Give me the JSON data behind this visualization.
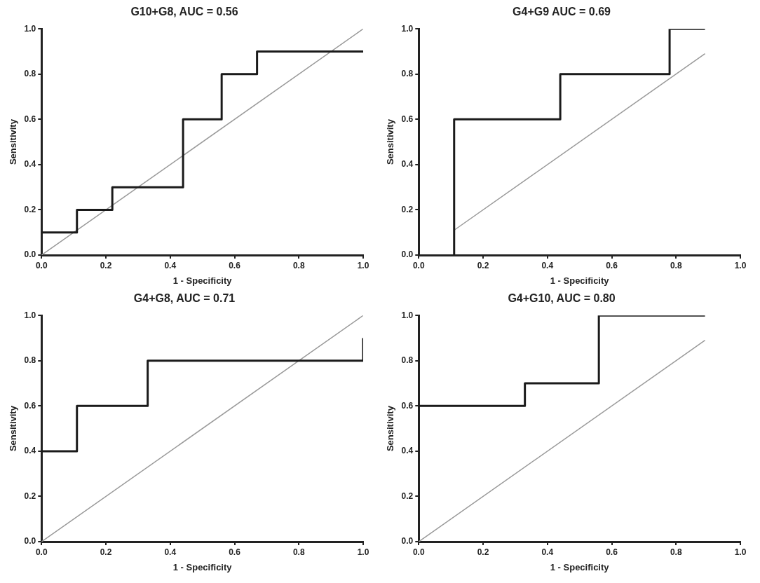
{
  "chart_data": [
    {
      "type": "line",
      "title": "G10+G8, AUC = 0.56",
      "xlabel": "1 - Specificity",
      "ylabel": "Sensitivity",
      "xlim": [
        0,
        1
      ],
      "ylim": [
        0,
        1
      ],
      "xticks": [
        {
          "value": 0,
          "label": "0.0"
        },
        {
          "value": 0.2,
          "label": "0.2"
        },
        {
          "value": 0.4,
          "label": "0.4"
        },
        {
          "value": 0.6,
          "label": "0.6"
        },
        {
          "value": 0.8,
          "label": "0.8"
        },
        {
          "value": 1,
          "label": "1.0"
        }
      ],
      "yticks": [
        {
          "value": 0,
          "label": "0.0"
        },
        {
          "value": 0.2,
          "label": "0.2"
        },
        {
          "value": 0.4,
          "label": "0.4"
        },
        {
          "value": 0.6,
          "label": "0.6"
        },
        {
          "value": 0.8,
          "label": "0.8"
        },
        {
          "value": 1,
          "label": "1.0"
        }
      ],
      "grid": false,
      "legend": false,
      "marker": "none",
      "series": [
        {
          "color": "#1a1a1a",
          "x": [
            0,
            0.11,
            0.11,
            0.22,
            0.22,
            0.44,
            0.44,
            0.56,
            0.56,
            0.67,
            0.67,
            1.0
          ],
          "values": [
            0.1,
            0.1,
            0.2,
            0.2,
            0.3,
            0.3,
            0.6,
            0.6,
            0.8,
            0.8,
            0.9,
            0.9
          ]
        },
        {
          "color": "#999999",
          "x": [
            0,
            1
          ],
          "values": [
            0,
            1
          ]
        }
      ]
    },
    {
      "type": "line",
      "title": "G4+G9 AUC = 0.69",
      "xlabel": "1 - Specificity",
      "ylabel": "Sensitivity",
      "xlim": [
        0,
        1
      ],
      "ylim": [
        0,
        1
      ],
      "xticks": [
        {
          "value": 0,
          "label": "0.0"
        },
        {
          "value": 0.2,
          "label": "0.2"
        },
        {
          "value": 0.4,
          "label": "0.4"
        },
        {
          "value": 0.6,
          "label": "0.6"
        },
        {
          "value": 0.8,
          "label": "0.8"
        },
        {
          "value": 1,
          "label": "1.0"
        }
      ],
      "yticks": [
        {
          "value": 0,
          "label": "0.0"
        },
        {
          "value": 0.2,
          "label": "0.2"
        },
        {
          "value": 0.4,
          "label": "0.4"
        },
        {
          "value": 0.6,
          "label": "0.6"
        },
        {
          "value": 0.8,
          "label": "0.8"
        },
        {
          "value": 1,
          "label": "1.0"
        }
      ],
      "grid": false,
      "legend": false,
      "marker": "none",
      "series": [
        {
          "color": "#1a1a1a",
          "x": [
            0.11,
            0.11,
            0.44,
            0.44,
            0.78,
            0.78,
            0.89
          ],
          "values": [
            0,
            0.6,
            0.6,
            0.8,
            0.8,
            1.0,
            1.0
          ]
        },
        {
          "color": "#999999",
          "x": [
            0.11,
            0.89
          ],
          "values": [
            0.11,
            0.89
          ]
        }
      ]
    },
    {
      "type": "line",
      "title": "G4+G8, AUC = 0.71",
      "xlabel": "1 - Specificity",
      "ylabel": "Sensitivity",
      "xlim": [
        0,
        1
      ],
      "ylim": [
        0,
        1
      ],
      "xticks": [
        {
          "value": 0,
          "label": "0.0"
        },
        {
          "value": 0.2,
          "label": "0.2"
        },
        {
          "value": 0.4,
          "label": "0.4"
        },
        {
          "value": 0.6,
          "label": "0.6"
        },
        {
          "value": 0.8,
          "label": "0.8"
        },
        {
          "value": 1,
          "label": "1.0"
        }
      ],
      "yticks": [
        {
          "value": 0,
          "label": "0.0"
        },
        {
          "value": 0.2,
          "label": "0.2"
        },
        {
          "value": 0.4,
          "label": "0.4"
        },
        {
          "value": 0.6,
          "label": "0.6"
        },
        {
          "value": 0.8,
          "label": "0.8"
        },
        {
          "value": 1,
          "label": "1.0"
        }
      ],
      "grid": false,
      "legend": false,
      "marker": "none",
      "series": [
        {
          "color": "#1a1a1a",
          "x": [
            0,
            0.11,
            0.11,
            0.33,
            0.33,
            1.0,
            1.0
          ],
          "values": [
            0.4,
            0.4,
            0.6,
            0.6,
            0.8,
            0.8,
            0.9
          ]
        },
        {
          "color": "#999999",
          "x": [
            0,
            1
          ],
          "values": [
            0,
            1
          ]
        }
      ]
    },
    {
      "type": "line",
      "title": "G4+G10, AUC = 0.80",
      "xlabel": "1 - Specificity",
      "ylabel": "Sensitivity",
      "xlim": [
        0,
        1
      ],
      "ylim": [
        0,
        1
      ],
      "xticks": [
        {
          "value": 0,
          "label": "0.0"
        },
        {
          "value": 0.2,
          "label": "0.2"
        },
        {
          "value": 0.4,
          "label": "0.4"
        },
        {
          "value": 0.6,
          "label": "0.6"
        },
        {
          "value": 0.8,
          "label": "0.8"
        },
        {
          "value": 1,
          "label": "1.0"
        }
      ],
      "yticks": [
        {
          "value": 0,
          "label": "0.0"
        },
        {
          "value": 0.2,
          "label": "0.2"
        },
        {
          "value": 0.4,
          "label": "0.4"
        },
        {
          "value": 0.6,
          "label": "0.6"
        },
        {
          "value": 0.8,
          "label": "0.8"
        },
        {
          "value": 1,
          "label": "1.0"
        }
      ],
      "grid": false,
      "legend": false,
      "marker": "none",
      "series": [
        {
          "color": "#1a1a1a",
          "x": [
            0,
            0.33,
            0.33,
            0.56,
            0.56,
            0.89
          ],
          "values": [
            0.6,
            0.6,
            0.7,
            0.7,
            1.0,
            1.0
          ]
        },
        {
          "color": "#999999",
          "x": [
            0,
            0.89
          ],
          "values": [
            0,
            0.89
          ]
        }
      ]
    }
  ]
}
